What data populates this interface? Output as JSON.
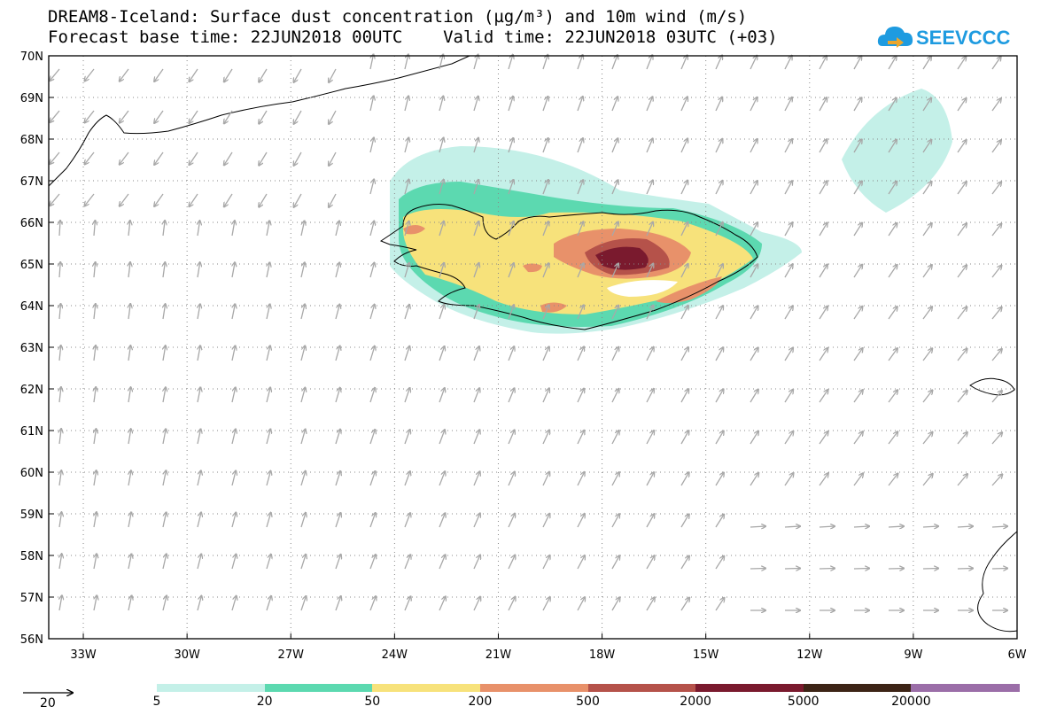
{
  "title": {
    "line1": "DREAM8-Iceland: Surface dust concentration (µg/m³) and 10m wind (m/s)",
    "line2": "Forecast base time: 22JUN2018 00UTC    Valid time: 22JUN2018 03UTC (+03)"
  },
  "logo": {
    "text": "SEEVCCC",
    "color": "#1e9be0",
    "accent": "#f5a623"
  },
  "map": {
    "lat_range": [
      56,
      70
    ],
    "lon_range": [
      -34,
      -6
    ],
    "lat_labels": [
      "70N",
      "69N",
      "68N",
      "67N",
      "66N",
      "65N",
      "64N",
      "63N",
      "62N",
      "61N",
      "60N",
      "59N",
      "58N",
      "57N",
      "56N"
    ],
    "lon_labels": [
      "33W",
      "30W",
      "27W",
      "24W",
      "21W",
      "18W",
      "15W",
      "12W",
      "9W",
      "6W"
    ],
    "gridlines": "dotted",
    "wind_arrow_color": "#a8a8a8"
  },
  "legend": {
    "reference_arrow_value": "20",
    "levels": [
      "5",
      "20",
      "50",
      "200",
      "500",
      "2000",
      "5000",
      "20000"
    ],
    "colors": [
      "#c4f0e8",
      "#5cd9b0",
      "#f7e27b",
      "#e8916a",
      "#b5524a",
      "#7a1a2e",
      "#3d2416",
      "#9b6ea8"
    ]
  }
}
